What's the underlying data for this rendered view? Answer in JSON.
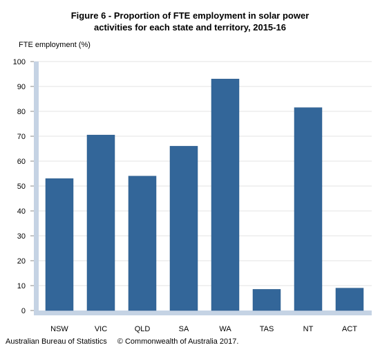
{
  "title_line1": "Figure 6 - Proportion of FTE employment in solar power",
  "title_line2": "activities for each state and territory, 2015-16",
  "footer": {
    "source": "Australian Bureau of Statistics",
    "copyright": "© Commonwealth of Australia 2017."
  },
  "colors": {
    "bar": "#336699",
    "axis_band": "#c5d3e4",
    "grid": "#e3e3e3"
  },
  "chart_data": {
    "type": "bar",
    "title": "Figure 6 - Proportion of FTE employment in solar power activities for each state and territory, 2015-16",
    "xlabel": "",
    "ylabel": "FTE employment (%)",
    "categories": [
      "NSW",
      "VIC",
      "QLD",
      "SA",
      "WA",
      "TAS",
      "NT",
      "ACT"
    ],
    "values": [
      53,
      70.5,
      54,
      66,
      93,
      8.5,
      81.5,
      9
    ],
    "ylim": [
      0,
      100
    ],
    "yticks": [
      0,
      10,
      20,
      30,
      40,
      50,
      60,
      70,
      80,
      90,
      100
    ],
    "grid": true,
    "legend": "none"
  }
}
